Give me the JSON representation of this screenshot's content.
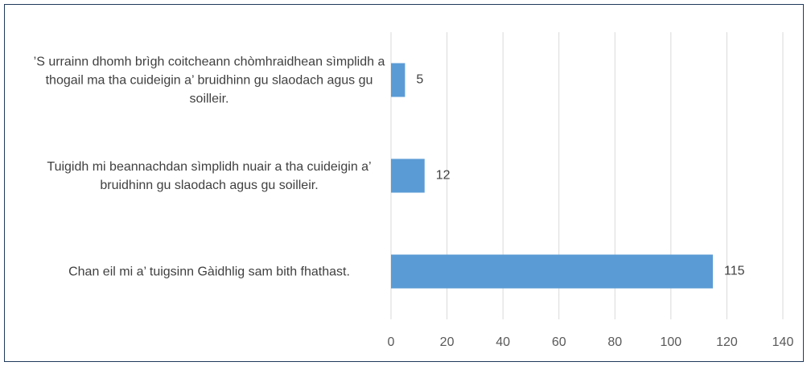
{
  "chart_data": {
    "type": "bar",
    "orientation": "horizontal",
    "categories": [
      "’S urrainn dhomh brìgh coitcheann chòmhraidhean sìmplidh a thogail ma tha cuideigin a’ bruidhinn gu slaodach agus gu soilleir.",
      "Tuigidh mi beannachdan sìmplidh nuair a tha cuideigin a’ bruidhinn gu slaodach agus gu soilleir.",
      "Chan eil mi a’ tuigsinn Gàidhlig sam bith fhathast."
    ],
    "values": [
      5,
      12,
      115
    ],
    "color": "#5b9bd5",
    "xlim": [
      0,
      140
    ],
    "xticks": [
      0,
      20,
      40,
      60,
      80,
      100,
      120,
      140
    ],
    "grid": true
  }
}
